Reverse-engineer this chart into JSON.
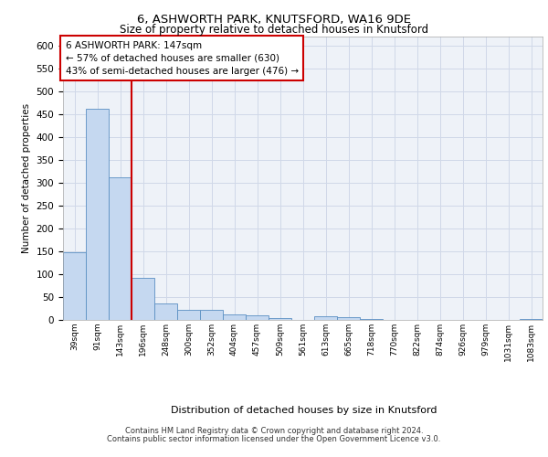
{
  "title1": "6, ASHWORTH PARK, KNUTSFORD, WA16 9DE",
  "title2": "Size of property relative to detached houses in Knutsford",
  "xlabel": "Distribution of detached houses by size in Knutsford",
  "ylabel": "Number of detached properties",
  "bar_color": "#c5d8f0",
  "bar_edge_color": "#5a8fc2",
  "bin_labels": [
    "39sqm",
    "91sqm",
    "143sqm",
    "196sqm",
    "248sqm",
    "300sqm",
    "352sqm",
    "404sqm",
    "457sqm",
    "509sqm",
    "561sqm",
    "613sqm",
    "665sqm",
    "718sqm",
    "770sqm",
    "822sqm",
    "874sqm",
    "926sqm",
    "979sqm",
    "1031sqm",
    "1083sqm"
  ],
  "bar_values": [
    148,
    462,
    313,
    93,
    37,
    22,
    22,
    13,
    10,
    5,
    0,
    8,
    6,
    2,
    1,
    0,
    0,
    0,
    0,
    0,
    2
  ],
  "vline_color": "#cc0000",
  "annotation_line1": "6 ASHWORTH PARK: 147sqm",
  "annotation_line2": "← 57% of detached houses are smaller (630)",
  "annotation_line3": "43% of semi-detached houses are larger (476) →",
  "annotation_box_color": "#ffffff",
  "annotation_box_edge": "#cc0000",
  "grid_color": "#d0d8e8",
  "background_color": "#eef2f8",
  "ylim": [
    0,
    620
  ],
  "yticks": [
    0,
    50,
    100,
    150,
    200,
    250,
    300,
    350,
    400,
    450,
    500,
    550,
    600
  ],
  "footer1": "Contains HM Land Registry data © Crown copyright and database right 2024.",
  "footer2": "Contains public sector information licensed under the Open Government Licence v3.0."
}
